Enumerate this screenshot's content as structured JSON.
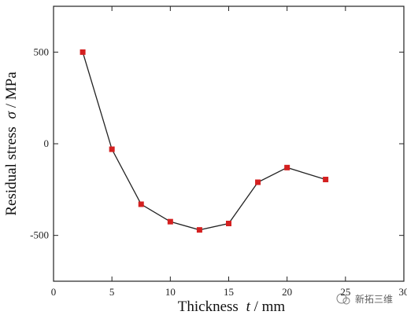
{
  "chart_data": {
    "type": "line",
    "xlabel": "Thickness",
    "xlabel_var": "t",
    "xlabel_unit": " / mm",
    "ylabel": "Residual stress",
    "ylabel_var": "σ",
    "ylabel_unit": " / MPa",
    "xlim": [
      0,
      30
    ],
    "ylim": [
      -750,
      750
    ],
    "xticks": [
      0,
      5,
      10,
      15,
      20,
      25,
      30
    ],
    "yticks": [
      500,
      0,
      -500
    ],
    "grid": false,
    "series": [
      {
        "x": [
          2.5,
          5,
          7.5,
          10,
          12.5,
          15,
          17.5,
          20,
          23.3
        ],
        "y": [
          500,
          -30,
          -330,
          -425,
          -470,
          -435,
          -210,
          -130,
          -195
        ],
        "marker": "square",
        "marker_color": "#d42020",
        "line_color": "#222222"
      }
    ]
  },
  "watermark": {
    "text": "新拓三维"
  }
}
